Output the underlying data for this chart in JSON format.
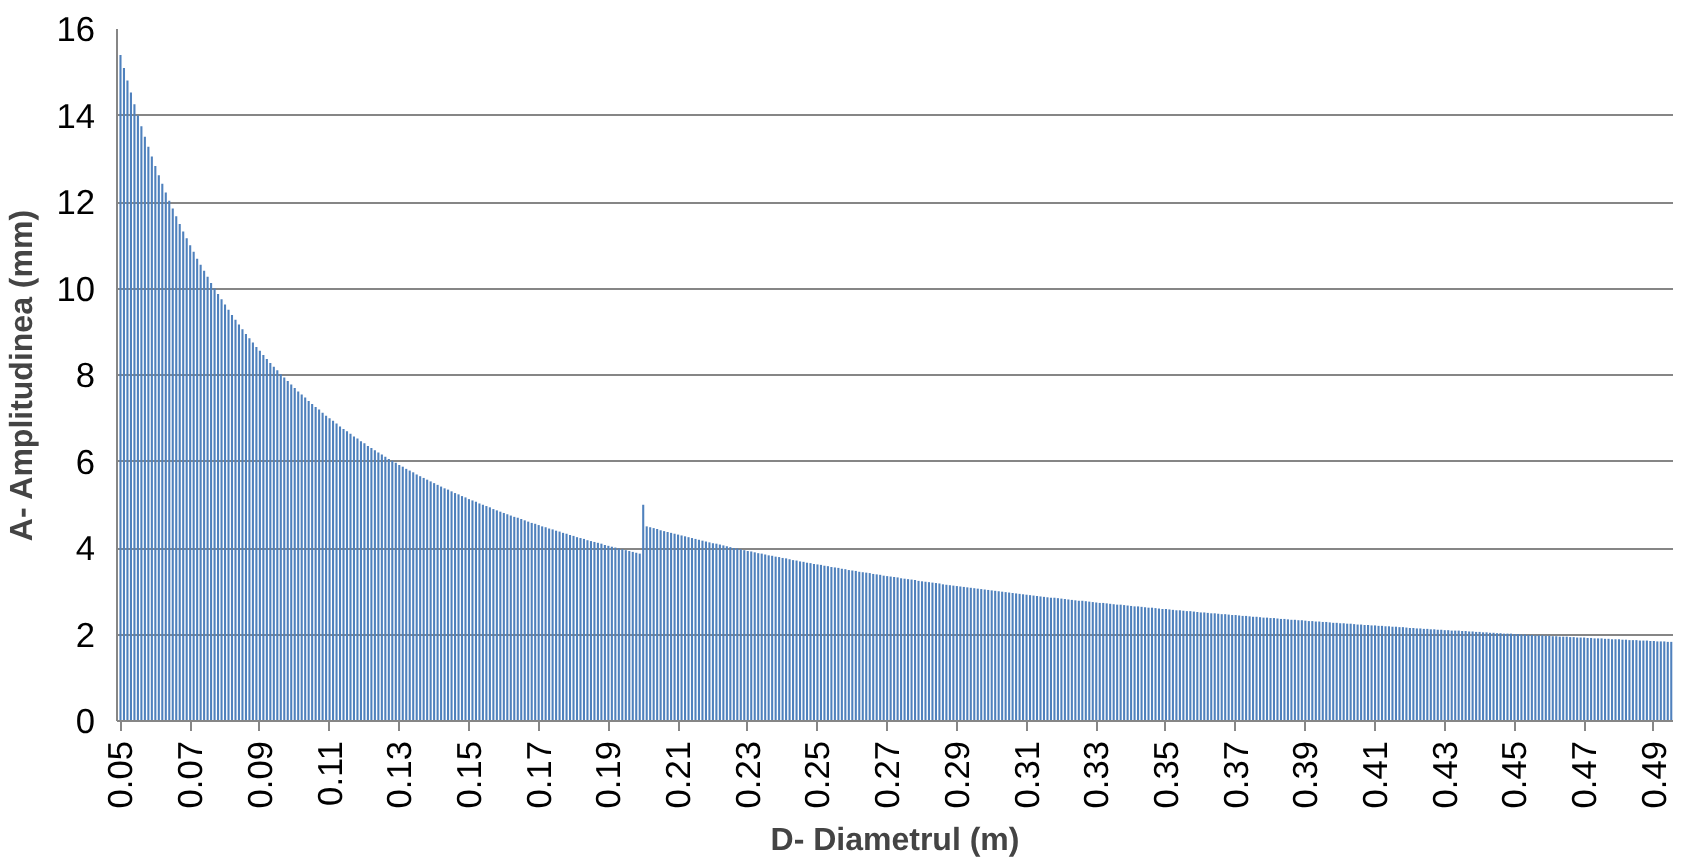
{
  "chart_data": {
    "type": "bar",
    "xlabel": "D- Diametrul (m)",
    "ylabel": "A- Amplitudinea (mm)",
    "color": "#4f81bd",
    "ylim": [
      0,
      16
    ],
    "yticks": [
      0,
      2,
      4,
      6,
      8,
      10,
      12,
      14,
      16
    ],
    "grid": "y",
    "categories": [
      "0.05",
      null,
      null,
      null,
      null,
      null,
      null,
      null,
      null,
      null,
      null,
      null,
      null,
      null,
      null,
      null,
      null,
      null,
      null,
      null,
      "0.07",
      null,
      null,
      null,
      null,
      null,
      null,
      null,
      null,
      null,
      null,
      null,
      null,
      null,
      null,
      null,
      null,
      null,
      null,
      null,
      "0.09",
      null,
      null,
      null,
      null,
      null,
      null,
      null,
      null,
      null,
      null,
      null,
      null,
      null,
      null,
      null,
      null,
      null,
      null,
      null,
      "0.11",
      null,
      null,
      null,
      null,
      null,
      null,
      null,
      null,
      null,
      null,
      null,
      null,
      null,
      null,
      null,
      null,
      null,
      null,
      null,
      "0.13",
      null,
      null,
      null,
      null,
      null,
      null,
      null,
      null,
      null,
      null,
      null,
      null,
      null,
      null,
      null,
      null,
      null,
      null,
      null,
      "0.15",
      null,
      null,
      null,
      null,
      null,
      null,
      null,
      null,
      null,
      null,
      null,
      null,
      null,
      null,
      null,
      null,
      null,
      null,
      null,
      "0.17",
      null,
      null,
      null,
      null,
      null,
      null,
      null,
      null,
      null,
      null,
      null,
      null,
      null,
      null,
      null,
      null,
      null,
      null,
      null,
      "0.19",
      null,
      null,
      null,
      null,
      null,
      null,
      null,
      null,
      null,
      null,
      null,
      null,
      null,
      null,
      null,
      null,
      null,
      null,
      null,
      "0.21",
      null,
      null,
      null,
      null,
      null,
      null,
      null,
      null,
      null,
      null,
      null,
      null,
      null,
      null,
      null,
      null,
      null,
      null,
      null,
      "0.23",
      null,
      null,
      null,
      null,
      null,
      null,
      null,
      null,
      null,
      null,
      null,
      null,
      null,
      null,
      null,
      null,
      null,
      null,
      null,
      "0.25",
      null,
      null,
      null,
      null,
      null,
      null,
      null,
      null,
      null,
      null,
      null,
      null,
      null,
      null,
      null,
      null,
      null,
      null,
      null,
      "0.27",
      null,
      null,
      null,
      null,
      null,
      null,
      null,
      null,
      null,
      null,
      null,
      null,
      null,
      null,
      null,
      null,
      null,
      null,
      null,
      "0.29",
      null,
      null,
      null,
      null,
      null,
      null,
      null,
      null,
      null,
      null,
      null,
      null,
      null,
      null,
      null,
      null,
      null,
      null,
      null,
      "0.31",
      null,
      null,
      null,
      null,
      null,
      null,
      null,
      null,
      null,
      null,
      null,
      null,
      null,
      null,
      null,
      null,
      null,
      null,
      null,
      "0.33",
      null,
      null,
      null,
      null,
      null,
      null,
      null,
      null,
      null,
      null,
      null,
      null,
      null,
      null,
      null,
      null,
      null,
      null,
      null,
      "0.35",
      null,
      null,
      null,
      null,
      null,
      null,
      null,
      null,
      null,
      null,
      null,
      null,
      null,
      null,
      null,
      null,
      null,
      null,
      null,
      "0.37",
      null,
      null,
      null,
      null,
      null,
      null,
      null,
      null,
      null,
      null,
      null,
      null,
      null,
      null,
      null,
      null,
      null,
      null,
      null,
      "0.39",
      null,
      null,
      null,
      null,
      null,
      null,
      null,
      null,
      null,
      null,
      null,
      null,
      null,
      null,
      null,
      null,
      null,
      null,
      null,
      "0.41",
      null,
      null,
      null,
      null,
      null,
      null,
      null,
      null,
      null,
      null,
      null,
      null,
      null,
      null,
      null,
      null,
      null,
      null,
      null,
      "0.43",
      null,
      null,
      null,
      null,
      null,
      null,
      null,
      null,
      null,
      null,
      null,
      null,
      null,
      null,
      null,
      null,
      null,
      null,
      null,
      "0.45",
      null,
      null,
      null,
      null,
      null,
      null,
      null,
      null,
      null,
      null,
      null,
      null,
      null,
      null,
      null,
      null,
      null,
      null,
      null,
      "0.47",
      null,
      null,
      null,
      null,
      null,
      null,
      null,
      null,
      null,
      null,
      null,
      null,
      null,
      null,
      null,
      null,
      null,
      null,
      null,
      "0.49",
      null,
      null,
      null,
      null,
      null
    ],
    "values": [
      15.4,
      15.1,
      14.81,
      14.53,
      14.26,
      14.0,
      13.75,
      13.51,
      13.28,
      13.05,
      12.83,
      12.62,
      12.42,
      12.22,
      12.03,
      11.85,
      11.67,
      11.49,
      11.32,
      11.16,
      11.0,
      10.85,
      10.69,
      10.55,
      10.41,
      10.27,
      10.13,
      10.0,
      9.87,
      9.75,
      9.63,
      9.51,
      9.39,
      9.28,
      9.17,
      9.06,
      8.95,
      8.85,
      8.75,
      8.65,
      8.56,
      8.46,
      8.37,
      8.28,
      8.19,
      8.11,
      8.02,
      7.94,
      7.86,
      7.78,
      7.7,
      7.62,
      7.55,
      7.48,
      7.4,
      7.33,
      7.26,
      7.2,
      7.13,
      7.06,
      7.0,
      6.94,
      6.88,
      6.81,
      6.75,
      6.7,
      6.64,
      6.58,
      6.53,
      6.47,
      6.42,
      6.36,
      6.31,
      6.26,
      6.21,
      6.16,
      6.11,
      6.06,
      6.02,
      5.97,
      5.92,
      5.88,
      5.83,
      5.79,
      5.75,
      5.7,
      5.66,
      5.62,
      5.58,
      5.54,
      5.5,
      5.46,
      5.42,
      5.38,
      5.35,
      5.31,
      5.27,
      5.24,
      5.2,
      5.17,
      5.13,
      5.1,
      5.07,
      5.03,
      5.0,
      4.97,
      4.94,
      4.9,
      4.87,
      4.84,
      4.81,
      4.78,
      4.75,
      4.72,
      4.7,
      4.67,
      4.64,
      4.61,
      4.58,
      4.56,
      4.53,
      4.5,
      4.48,
      4.45,
      4.43,
      4.4,
      4.38,
      4.35,
      4.33,
      4.3,
      4.28,
      4.25,
      4.23,
      4.21,
      4.18,
      4.16,
      4.14,
      4.12,
      4.1,
      4.07,
      4.05,
      4.03,
      4.01,
      3.99,
      3.97,
      3.95,
      3.93,
      3.91,
      3.89,
      3.87,
      5.0,
      4.5,
      4.48,
      4.46,
      4.44,
      4.41,
      4.39,
      4.37,
      4.35,
      4.33,
      4.31,
      4.29,
      4.27,
      4.25,
      4.23,
      4.21,
      4.19,
      4.17,
      4.15,
      4.13,
      4.11,
      4.1,
      4.08,
      4.06,
      4.04,
      4.02,
      4.0,
      3.99,
      3.97,
      3.95,
      3.93,
      3.92,
      3.9,
      3.88,
      3.87,
      3.85,
      3.83,
      3.82,
      3.8,
      3.79,
      3.77,
      3.76,
      3.74,
      3.72,
      3.71,
      3.69,
      3.68,
      3.66,
      3.65,
      3.63,
      3.62,
      3.61,
      3.59,
      3.58,
      3.56,
      3.55,
      3.54,
      3.52,
      3.51,
      3.49,
      3.48,
      3.47,
      3.45,
      3.44,
      3.43,
      3.42,
      3.4,
      3.39,
      3.38,
      3.36,
      3.35,
      3.34,
      3.33,
      3.32,
      3.3,
      3.29,
      3.28,
      3.27,
      3.26,
      3.24,
      3.23,
      3.22,
      3.21,
      3.2,
      3.19,
      3.18,
      3.16,
      3.15,
      3.14,
      3.13,
      3.12,
      3.11,
      3.1,
      3.09,
      3.08,
      3.07,
      3.06,
      3.05,
      3.04,
      3.03,
      3.02,
      3.01,
      3.0,
      2.99,
      2.98,
      2.97,
      2.96,
      2.95,
      2.94,
      2.93,
      2.92,
      2.91,
      2.9,
      2.89,
      2.88,
      2.87,
      2.86,
      2.85,
      2.85,
      2.84,
      2.83,
      2.82,
      2.81,
      2.8,
      2.79,
      2.78,
      2.78,
      2.77,
      2.76,
      2.75,
      2.74,
      2.73,
      2.73,
      2.72,
      2.71,
      2.7,
      2.69,
      2.69,
      2.68,
      2.67,
      2.66,
      2.65,
      2.65,
      2.64,
      2.63,
      2.62,
      2.62,
      2.61,
      2.6,
      2.59,
      2.59,
      2.58,
      2.57,
      2.56,
      2.56,
      2.55,
      2.54,
      2.54,
      2.53,
      2.52,
      2.51,
      2.51,
      2.5,
      2.49,
      2.49,
      2.48,
      2.47,
      2.47,
      2.46,
      2.45,
      2.45,
      2.44,
      2.43,
      2.43,
      2.42,
      2.41,
      2.41,
      2.4,
      2.39,
      2.39,
      2.38,
      2.38,
      2.37,
      2.36,
      2.36,
      2.35,
      2.34,
      2.34,
      2.33,
      2.33,
      2.32,
      2.31,
      2.31,
      2.3,
      2.3,
      2.29,
      2.29,
      2.28,
      2.27,
      2.27,
      2.26,
      2.26,
      2.25,
      2.25,
      2.24,
      2.23,
      2.23,
      2.22,
      2.22,
      2.21,
      2.21,
      2.2,
      2.2,
      2.19,
      2.19,
      2.18,
      2.18,
      2.17,
      2.17,
      2.16,
      2.15,
      2.15,
      2.14,
      2.14,
      2.13,
      2.13,
      2.12,
      2.12,
      2.11,
      2.11,
      2.1,
      2.1,
      2.09,
      2.09,
      2.09,
      2.08,
      2.08,
      2.07,
      2.07,
      2.06,
      2.06,
      2.05,
      2.05,
      2.04,
      2.04,
      2.03,
      2.03,
      2.02,
      2.02,
      2.02,
      2.01,
      2.01,
      2.0,
      2.0,
      1.99,
      1.99,
      1.98,
      1.98,
      1.98,
      1.97,
      1.97,
      1.96,
      1.96,
      1.95,
      1.95,
      1.95,
      1.94,
      1.94,
      1.93,
      1.93,
      1.93,
      1.92,
      1.92,
      1.91,
      1.91,
      1.91,
      1.9,
      1.9,
      1.89,
      1.89,
      1.89,
      1.88,
      1.88,
      1.87,
      1.87,
      1.87,
      1.86,
      1.86,
      1.86,
      1.85,
      1.85,
      1.84,
      1.84,
      1.84,
      1.83,
      1.83
    ]
  }
}
